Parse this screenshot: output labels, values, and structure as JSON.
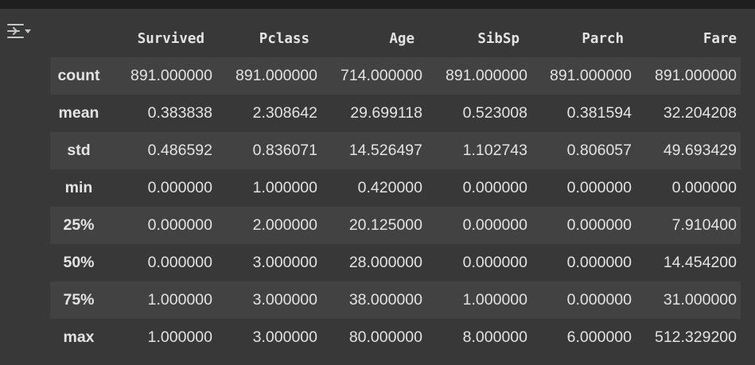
{
  "table": {
    "columns": [
      "Survived",
      "Pclass",
      "Age",
      "SibSp",
      "Parch",
      "Fare"
    ],
    "rows": [
      {
        "label": "count",
        "values": [
          "891.000000",
          "891.000000",
          "714.000000",
          "891.000000",
          "891.000000",
          "891.000000"
        ]
      },
      {
        "label": "mean",
        "values": [
          "0.383838",
          "2.308642",
          "29.699118",
          "0.523008",
          "0.381594",
          "32.204208"
        ]
      },
      {
        "label": "std",
        "values": [
          "0.486592",
          "0.836071",
          "14.526497",
          "1.102743",
          "0.806057",
          "49.693429"
        ]
      },
      {
        "label": "min",
        "values": [
          "0.000000",
          "1.000000",
          "0.420000",
          "0.000000",
          "0.000000",
          "0.000000"
        ]
      },
      {
        "label": "25%",
        "values": [
          "0.000000",
          "2.000000",
          "20.125000",
          "0.000000",
          "0.000000",
          "7.910400"
        ]
      },
      {
        "label": "50%",
        "values": [
          "0.000000",
          "3.000000",
          "28.000000",
          "0.000000",
          "0.000000",
          "14.454200"
        ]
      },
      {
        "label": "75%",
        "values": [
          "1.000000",
          "3.000000",
          "38.000000",
          "1.000000",
          "0.000000",
          "31.000000"
        ]
      },
      {
        "label": "max",
        "values": [
          "1.000000",
          "3.000000",
          "80.000000",
          "8.000000",
          "6.000000",
          "512.329200"
        ]
      }
    ]
  },
  "icons": {
    "output_actions": "output-actions-icon"
  },
  "colors": {
    "background": "#383838",
    "stripe": "#424242",
    "topbar": "#1f1f1f",
    "text": "#e3e3e3"
  }
}
